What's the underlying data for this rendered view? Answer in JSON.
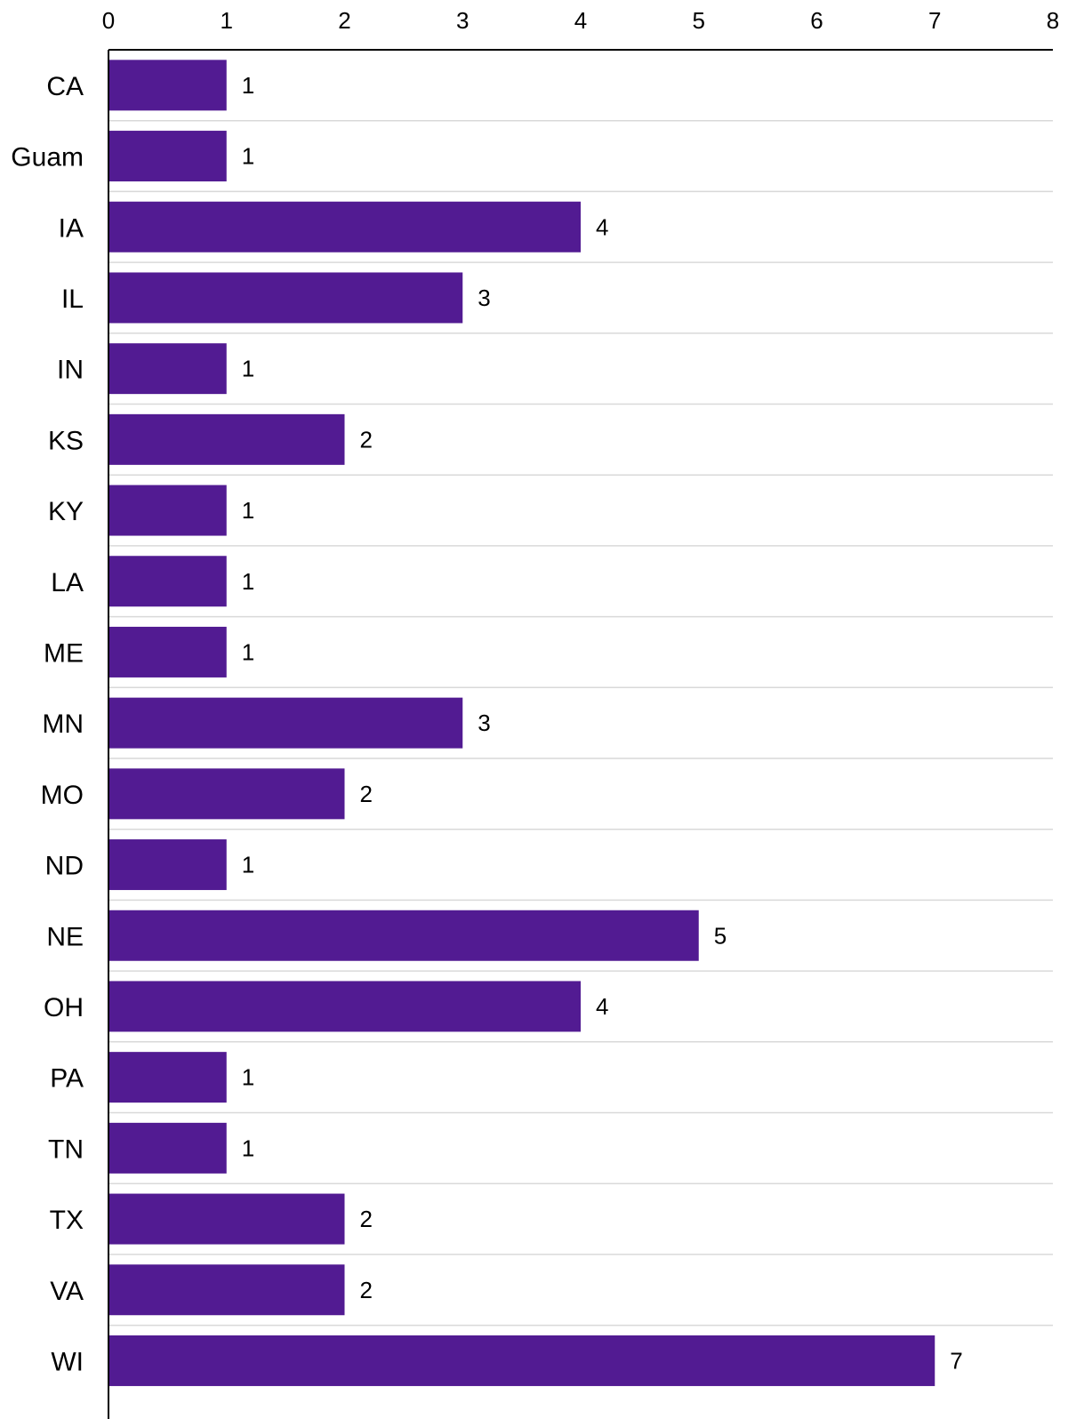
{
  "chart_data": {
    "type": "bar",
    "orientation": "horizontal",
    "title": "",
    "xlabel": "",
    "ylabel": "",
    "xlim": [
      0,
      8
    ],
    "x_ticks": [
      0,
      1,
      2,
      3,
      4,
      5,
      6,
      7,
      8
    ],
    "x_axis_position": "top",
    "grid": "horizontal separators between categories",
    "bar_color": "#521b92",
    "categories": [
      "CA",
      "Guam",
      "IA",
      "IL",
      "IN",
      "KS",
      "KY",
      "LA",
      "ME",
      "MN",
      "MO",
      "ND",
      "NE",
      "OH",
      "PA",
      "TN",
      "TX",
      "VA",
      "WI"
    ],
    "values": [
      1,
      1,
      4,
      3,
      1,
      2,
      1,
      1,
      1,
      3,
      2,
      1,
      5,
      4,
      1,
      1,
      2,
      2,
      7
    ],
    "data_labels": [
      "1",
      "1",
      "4",
      "3",
      "1",
      "2",
      "1",
      "1",
      "1",
      "3",
      "2",
      "1",
      "5",
      "4",
      "1",
      "1",
      "2",
      "2",
      "7"
    ]
  }
}
